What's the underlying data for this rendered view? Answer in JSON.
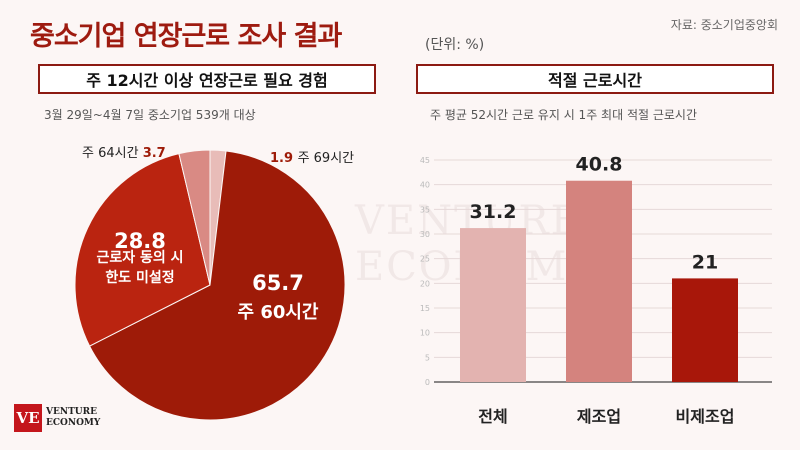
{
  "header": {
    "title": "중소기업 연장근로 조사 결과",
    "unit": "(단위: %)",
    "source": "자료: 중소기업중앙회"
  },
  "left_panel": {
    "heading": "주 12시간 이상 연장근로 필요 경험",
    "subheading": "3월 29일~4월 7일 중소기업 539개 대상"
  },
  "right_panel": {
    "heading": "적절 근로시간",
    "subheading": "주 평균 52시간 근로 유지 시 1주 최대 적절 근로시간"
  },
  "chart_data": [
    {
      "type": "pie",
      "slices": [
        {
          "label": "주 60시간",
          "value": 65.7,
          "color": "#9e1b08"
        },
        {
          "label": "근로자 동의 시 한도 미설정",
          "value": 28.8,
          "color": "#ba2410"
        },
        {
          "label": "주 64시간",
          "value": 3.7,
          "color": "#d98a84"
        },
        {
          "label": "주 69시간",
          "value": 1.9,
          "color": "#e8bcb8"
        }
      ]
    },
    {
      "type": "bar",
      "categories": [
        "전체",
        "제조업",
        "비제조업"
      ],
      "values": [
        31.2,
        40.8,
        21
      ],
      "colors": [
        "#e3b3b0",
        "#d4837e",
        "#a8170a"
      ],
      "ylim": [
        0,
        45
      ],
      "yticks": [
        0,
        5,
        10,
        15,
        20,
        25,
        30,
        35,
        40,
        45
      ],
      "grid": true
    }
  ],
  "branding": {
    "logo_mark": "VE",
    "logo_line1": "VENTURE",
    "logo_line2": "ECONOMY",
    "watermark_line1": "VENTURE",
    "watermark_line2": "ECONOMY"
  }
}
